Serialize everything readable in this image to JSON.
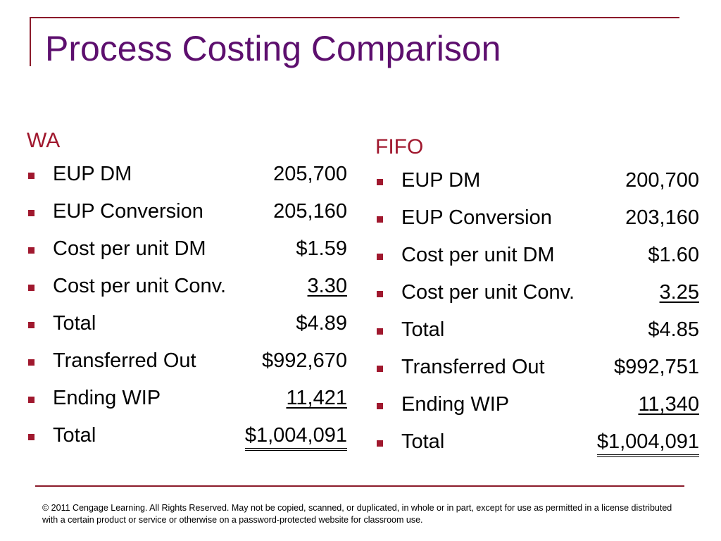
{
  "title": "Process Costing Comparison",
  "columns": [
    {
      "heading": "WA",
      "items": [
        {
          "label": "EUP DM",
          "value": "205,700"
        },
        {
          "label": "EUP Conversion",
          "value": "205,160"
        },
        {
          "label": "Cost per unit DM",
          "value": "$1.59"
        },
        {
          "label": "Cost per unit Conv.",
          "value": "3.30"
        },
        {
          "label": "Total",
          "value": "$4.89"
        },
        {
          "label": "Transferred Out",
          "value": "$992,670"
        },
        {
          "label": "Ending WIP",
          "value": "11,421"
        },
        {
          "label": "Total",
          "value": "$1,004,091"
        }
      ]
    },
    {
      "heading": "FIFO",
      "items": [
        {
          "label": "EUP DM",
          "value": "200,700"
        },
        {
          "label": "EUP Conversion",
          "value": "203,160"
        },
        {
          "label": "Cost per unit DM",
          "value": "$1.60"
        },
        {
          "label": "Cost per unit Conv.",
          "value": "3.25"
        },
        {
          "label": "Total",
          "value": "$4.85"
        },
        {
          "label": "Transferred Out",
          "value": "$992,751"
        },
        {
          "label": "Ending WIP",
          "value": "11,340"
        },
        {
          "label": "Total",
          "value": "$1,004,091"
        }
      ]
    }
  ],
  "footer": "© 2011 Cengage Learning.  All Rights Reserved.  May not be copied, scanned, or duplicated, in whole or in part, except for use as permitted in a license distributed with a certain product or service or otherwise on a password-protected website for classroom use."
}
